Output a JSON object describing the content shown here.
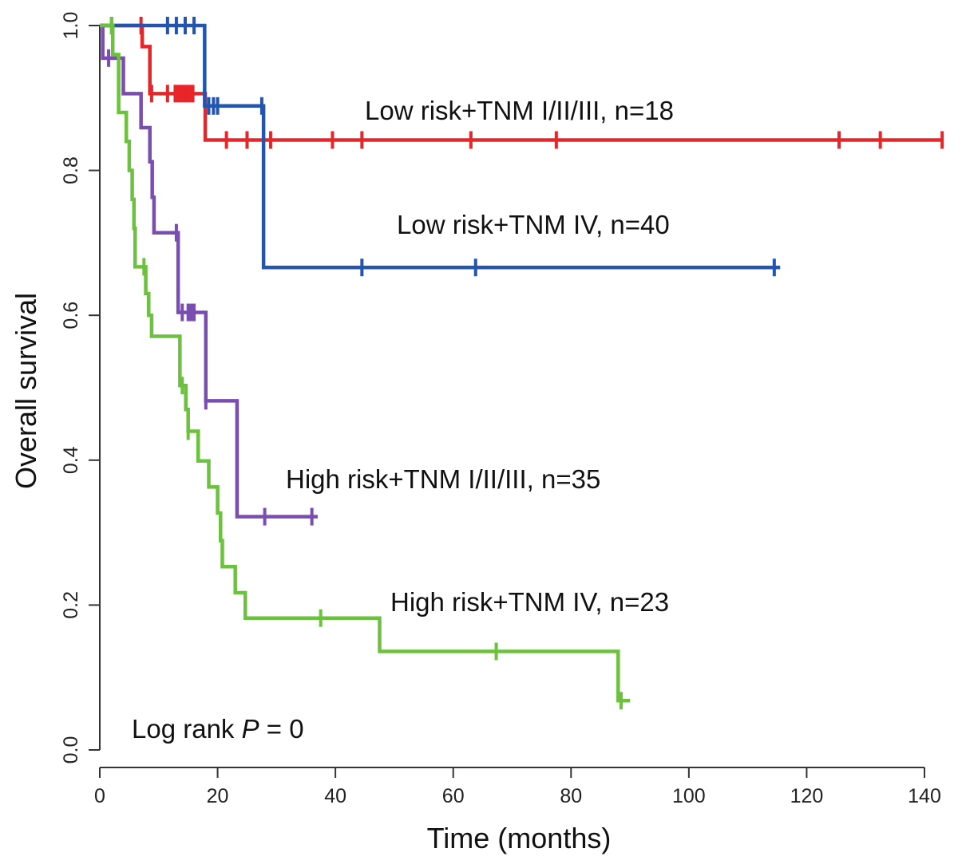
{
  "chart_data": {
    "type": "line",
    "subtype": "kaplan-meier step",
    "xlabel": "Time (months)",
    "ylabel": "Overall survival",
    "xlim": [
      0,
      140
    ],
    "ylim": [
      0,
      1
    ],
    "xticks": [
      "0",
      "20",
      "40",
      "60",
      "80",
      "100",
      "120",
      "140"
    ],
    "yticks": [
      "0.0",
      "0.2",
      "0.4",
      "0.6",
      "0.8",
      "1.0"
    ],
    "grid": false,
    "annotation": {
      "prefix": "Log rank ",
      "stat": "P",
      "suffix": " = 0"
    },
    "series": [
      {
        "name": "Low risk+TNM I/II/III, n=18",
        "color": "#e8262a",
        "steps": [
          [
            0,
            1.0
          ],
          [
            7.2,
            0.971
          ],
          [
            8.5,
            0.906
          ],
          [
            17.9,
            0.842
          ]
        ],
        "censored": [
          2,
          7,
          8.8,
          11.5,
          12.8,
          13.3,
          13.8,
          14.3,
          14.8,
          15.3,
          15.8,
          21.5,
          25,
          29,
          39.5,
          44.5,
          63,
          77.5,
          125.5,
          132.5,
          143
        ],
        "end": 143
      },
      {
        "name": "Low risk+TNM IV, n=40",
        "color": "#2255b0",
        "steps": [
          [
            0,
            1.0
          ],
          [
            17.8,
            0.889
          ],
          [
            27.8,
            0.666
          ]
        ],
        "censored": [
          11.5,
          13,
          14.5,
          16,
          18.5,
          19.3,
          20,
          27.5,
          44.5,
          63.8,
          114.5
        ],
        "end": 115.5
      },
      {
        "name": "High risk+TNM I/II/III, n=35",
        "color": "#7a4db0",
        "steps": [
          [
            0,
            1.0
          ],
          [
            0.5,
            0.955
          ],
          [
            4,
            0.906
          ],
          [
            7,
            0.859
          ],
          [
            8.5,
            0.812
          ],
          [
            8.9,
            0.763
          ],
          [
            9.2,
            0.714
          ],
          [
            13.3,
            0.604
          ],
          [
            18,
            0.482
          ],
          [
            23.3,
            0.322
          ]
        ],
        "censored": [
          1.5,
          13,
          14,
          15,
          15.5,
          16,
          18,
          28,
          36
        ],
        "end": 37
      },
      {
        "name": "High risk+TNM IV, n=23",
        "color": "#6cc13f",
        "steps": [
          [
            0,
            1.0
          ],
          [
            2.2,
            0.96
          ],
          [
            3.2,
            0.88
          ],
          [
            4.5,
            0.84
          ],
          [
            5,
            0.8
          ],
          [
            5.5,
            0.76
          ],
          [
            5.8,
            0.72
          ],
          [
            6,
            0.667
          ],
          [
            7.8,
            0.63
          ],
          [
            8.3,
            0.6
          ],
          [
            8.8,
            0.571
          ],
          [
            13.6,
            0.503
          ],
          [
            14.6,
            0.47
          ],
          [
            15,
            0.44
          ],
          [
            16.7,
            0.399
          ],
          [
            18.5,
            0.363
          ],
          [
            20,
            0.327
          ],
          [
            20.5,
            0.289
          ],
          [
            20.8,
            0.253
          ],
          [
            23,
            0.217
          ],
          [
            24.7,
            0.182
          ],
          [
            47.5,
            0.136
          ],
          [
            88,
            0.068
          ]
        ],
        "censored": [
          2,
          7.5,
          14,
          15,
          37.5,
          67.3,
          88.5
        ],
        "end": 90
      }
    ]
  }
}
